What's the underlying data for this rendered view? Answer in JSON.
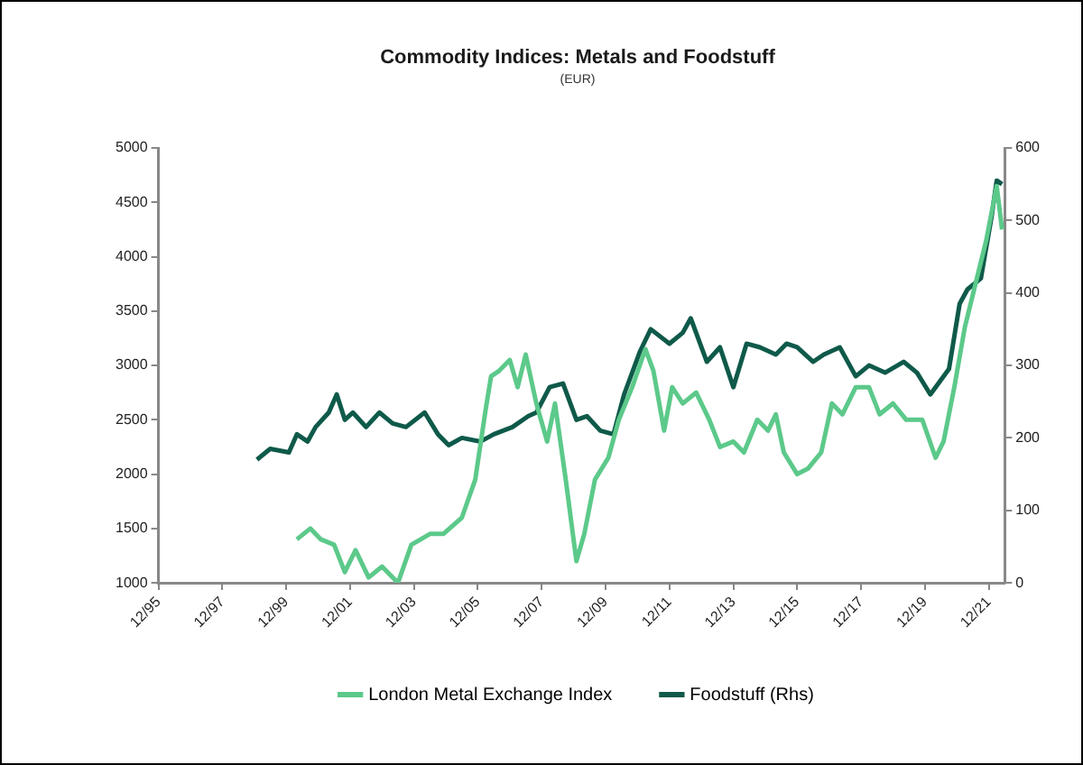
{
  "chart_data": {
    "type": "line",
    "title": "Commodity Indices: Metals and Foodstuff",
    "subtitle": "(EUR)",
    "xlim": [
      "1995-12",
      "2022-06"
    ],
    "xticks": [
      {
        "value": "1995-12",
        "label": "12/95"
      },
      {
        "value": "1997-12",
        "label": "12/97"
      },
      {
        "value": "1999-12",
        "label": "12/99"
      },
      {
        "value": "2001-12",
        "label": "12/01"
      },
      {
        "value": "2003-12",
        "label": "12/03"
      },
      {
        "value": "2005-12",
        "label": "12/05"
      },
      {
        "value": "2007-12",
        "label": "12/07"
      },
      {
        "value": "2009-12",
        "label": "12/09"
      },
      {
        "value": "2011-12",
        "label": "12/11"
      },
      {
        "value": "2013-12",
        "label": "12/13"
      },
      {
        "value": "2015-12",
        "label": "12/15"
      },
      {
        "value": "2017-12",
        "label": "12/17"
      },
      {
        "value": "2019-12",
        "label": "12/19"
      },
      {
        "value": "2021-12",
        "label": "12/21"
      }
    ],
    "ylim": [
      1000,
      5000
    ],
    "yticks": [
      1000,
      1500,
      2000,
      2500,
      3000,
      3500,
      4000,
      4500,
      5000
    ],
    "y2lim": [
      0,
      600
    ],
    "y2ticks": [
      0,
      100,
      200,
      300,
      400,
      500,
      600
    ],
    "grid": false,
    "legend": "bottom",
    "marker": "none",
    "line_style": "solid",
    "series": [
      {
        "name": "London Metal Exchange Index",
        "color": "#5cc98a",
        "x": [
          "2000-04",
          "2000-09",
          "2001-01",
          "2001-06",
          "2001-10",
          "2002-02",
          "2002-07",
          "2002-12",
          "2003-06",
          "2003-11",
          "2004-06",
          "2004-11",
          "2005-06",
          "2005-11",
          "2006-03",
          "2006-05",
          "2006-08",
          "2006-12",
          "2007-03",
          "2007-06",
          "2007-10",
          "2008-02",
          "2008-05",
          "2008-09",
          "2009-01",
          "2009-04",
          "2009-08",
          "2010-01",
          "2010-05",
          "2010-10",
          "2011-03",
          "2011-06",
          "2011-10",
          "2012-01",
          "2012-05",
          "2012-10",
          "2013-03",
          "2013-07",
          "2013-12",
          "2014-04",
          "2014-09",
          "2015-01",
          "2015-04",
          "2015-07",
          "2015-12",
          "2016-04",
          "2016-09",
          "2017-01",
          "2017-05",
          "2017-10",
          "2018-03",
          "2018-07",
          "2018-12",
          "2019-05",
          "2019-11",
          "2020-04",
          "2020-07",
          "2020-11",
          "2021-03",
          "2021-06",
          "2021-11",
          "2022-03",
          "2022-05"
        ],
        "values": [
          1400,
          1500,
          1400,
          1350,
          1100,
          1300,
          1050,
          1150,
          1000,
          1350,
          1450,
          1450,
          1600,
          1950,
          2600,
          2900,
          2950,
          3050,
          2800,
          3100,
          2650,
          2300,
          2650,
          1950,
          1200,
          1450,
          1950,
          2150,
          2500,
          2800,
          3150,
          2950,
          2400,
          2800,
          2650,
          2750,
          2500,
          2250,
          2300,
          2200,
          2500,
          2400,
          2550,
          2200,
          2000,
          2050,
          2200,
          2650,
          2550,
          2800,
          2800,
          2550,
          2650,
          2500,
          2500,
          2150,
          2300,
          2800,
          3350,
          3650,
          4150,
          4650,
          4250
        ]
      },
      {
        "name": "Foodstuff (Rhs)",
        "color": "#0f5a4a",
        "axis": "y2",
        "x": [
          "1999-01",
          "1999-06",
          "2000-01",
          "2000-04",
          "2000-08",
          "2000-11",
          "2001-04",
          "2001-07",
          "2001-10",
          "2002-01",
          "2002-06",
          "2002-11",
          "2003-04",
          "2003-09",
          "2004-04",
          "2004-09",
          "2005-01",
          "2005-06",
          "2006-01",
          "2006-06",
          "2007-01",
          "2007-07",
          "2007-10",
          "2008-03",
          "2008-08",
          "2009-01",
          "2009-05",
          "2009-10",
          "2010-03",
          "2010-07",
          "2011-01",
          "2011-05",
          "2011-12",
          "2012-05",
          "2012-08",
          "2013-02",
          "2013-07",
          "2013-12",
          "2014-05",
          "2014-10",
          "2015-04",
          "2015-08",
          "2015-12",
          "2016-06",
          "2016-10",
          "2017-04",
          "2017-10",
          "2018-03",
          "2018-09",
          "2019-04",
          "2019-09",
          "2020-02",
          "2020-09",
          "2021-01",
          "2021-04",
          "2021-09",
          "2022-01",
          "2022-03",
          "2022-05"
        ],
        "values": [
          170,
          185,
          180,
          205,
          195,
          215,
          235,
          260,
          225,
          235,
          215,
          235,
          220,
          215,
          235,
          205,
          190,
          200,
          195,
          205,
          215,
          230,
          235,
          270,
          275,
          225,
          230,
          210,
          205,
          260,
          320,
          350,
          330,
          345,
          365,
          305,
          325,
          270,
          330,
          325,
          315,
          330,
          325,
          305,
          315,
          325,
          285,
          300,
          290,
          305,
          290,
          260,
          295,
          385,
          405,
          420,
          505,
          555,
          550
        ]
      }
    ]
  }
}
